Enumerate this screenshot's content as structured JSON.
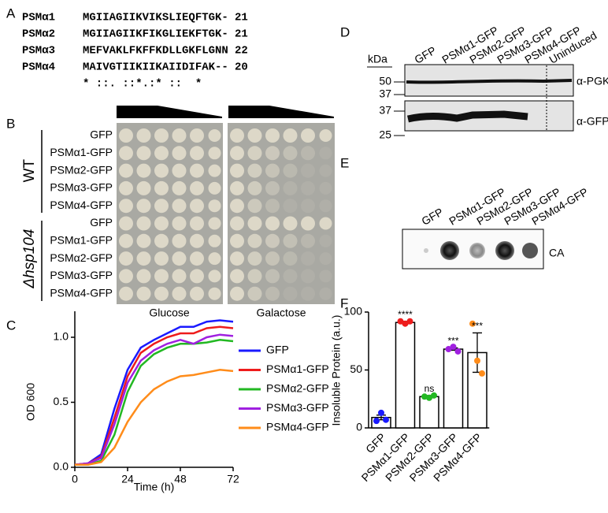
{
  "panel_letters": [
    "A",
    "B",
    "C",
    "D",
    "E",
    "F"
  ],
  "alignment": {
    "rows": [
      {
        "name": "PSMα1",
        "sequence": "MGIIAGIIKVIKSLIEQFTGK-",
        "length": "21"
      },
      {
        "name": "PSMα2",
        "sequence": "MGIIAGIIKFIKGLIEKFTGK-",
        "length": "21"
      },
      {
        "name": "PSMα3",
        "sequence": "MEFVAKLFKFFKDLLGKFLGNN",
        "length": "22"
      },
      {
        "name": "PSMα4",
        "sequence": "MAIVGTIIKIIKAIIDIFAK--",
        "length": "20"
      }
    ],
    "consensus": "* ::. ::*.:* ::  *"
  },
  "spot_assay": {
    "groups": [
      {
        "label": "WT",
        "rows": [
          "GFP",
          "PSMα1-GFP",
          "PSMα2-GFP",
          "PSMα3-GFP",
          "PSMα4-GFP"
        ]
      },
      {
        "label": "Δhsp104",
        "rows": [
          "GFP",
          "PSMα1-GFP",
          "PSMα2-GFP",
          "PSMα3-GFP",
          "PSMα4-GFP"
        ]
      }
    ],
    "media": [
      "Glucose",
      "Galactose"
    ]
  },
  "western_blot": {
    "unit": "kDa",
    "lanes": [
      "GFP",
      "PSMα1-GFP",
      "PSMα2-GFP",
      "PSMα3-GFP",
      "PSMα4-GFP",
      "Uninduced"
    ],
    "markers": [
      "50",
      "37",
      "37",
      "25"
    ],
    "antibodies": [
      "α-PGK",
      "α-GFP"
    ]
  },
  "dot_blot": {
    "lanes": [
      "GFP",
      "PSMα1-GFP",
      "PSMα2-GFP",
      "PSMα3-GFP",
      "PSMα4-GFP"
    ],
    "antibody": "CA"
  },
  "chart_data": [
    {
      "type": "line",
      "xlabel": "Time (h)",
      "ylabel": "OD 600",
      "x": [
        0,
        6,
        12,
        18,
        24,
        30,
        36,
        42,
        48,
        54,
        60,
        66,
        72
      ],
      "xlim": [
        0,
        72
      ],
      "xticks": [
        0,
        24,
        48,
        72
      ],
      "ylim": [
        0,
        1.2
      ],
      "yticks": [
        {
          "value": 0,
          "label": "0.0"
        },
        {
          "value": 0.5,
          "label": "0.5"
        },
        {
          "value": 1,
          "label": "1.0"
        }
      ],
      "series": [
        {
          "name": "GFP",
          "color": "#1a1aff",
          "values": [
            0.02,
            0.03,
            0.1,
            0.45,
            0.75,
            0.92,
            0.98,
            1.03,
            1.08,
            1.08,
            1.12,
            1.13,
            1.12
          ]
        },
        {
          "name": "PSMα1-GFP",
          "color": "#ee1c1c",
          "values": [
            0.02,
            0.03,
            0.08,
            0.38,
            0.7,
            0.88,
            0.95,
            1.0,
            1.03,
            1.03,
            1.07,
            1.08,
            1.07
          ]
        },
        {
          "name": "PSMα2-GFP",
          "color": "#22b822",
          "values": [
            0.02,
            0.02,
            0.05,
            0.25,
            0.58,
            0.78,
            0.87,
            0.92,
            0.95,
            0.95,
            0.96,
            0.98,
            0.97
          ]
        },
        {
          "name": "PSMα3-GFP",
          "color": "#a020e0",
          "values": [
            0.02,
            0.03,
            0.07,
            0.33,
            0.65,
            0.82,
            0.9,
            0.95,
            0.98,
            0.95,
            1.0,
            1.02,
            1.01
          ]
        },
        {
          "name": "PSMα4-GFP",
          "color": "#ff8c1a",
          "values": [
            0.02,
            0.02,
            0.04,
            0.15,
            0.35,
            0.5,
            0.6,
            0.66,
            0.7,
            0.71,
            0.73,
            0.75,
            0.74
          ]
        }
      ]
    },
    {
      "type": "bar",
      "ylabel": "Insoluble Protein (a.u.)",
      "categories": [
        "GFP",
        "PSMα1-GFP",
        "PSMα2-GFP",
        "PSMα3-GFP",
        "PSMα4-GFP"
      ],
      "values": [
        9,
        91,
        27,
        68,
        65
      ],
      "errors": [
        2,
        1,
        1,
        1,
        17
      ],
      "points": [
        [
          6,
          13,
          7
        ],
        [
          92,
          90,
          92
        ],
        [
          27,
          26,
          28
        ],
        [
          68,
          70,
          66
        ],
        [
          90,
          58,
          47
        ]
      ],
      "colors": [
        "#1a1aff",
        "#ee1c1c",
        "#22b822",
        "#a020e0",
        "#ff8c1a"
      ],
      "annotations": [
        null,
        "****",
        "ns",
        "***",
        "***"
      ],
      "ylim": [
        0,
        100
      ],
      "yticks": [
        0,
        50,
        100
      ]
    }
  ]
}
